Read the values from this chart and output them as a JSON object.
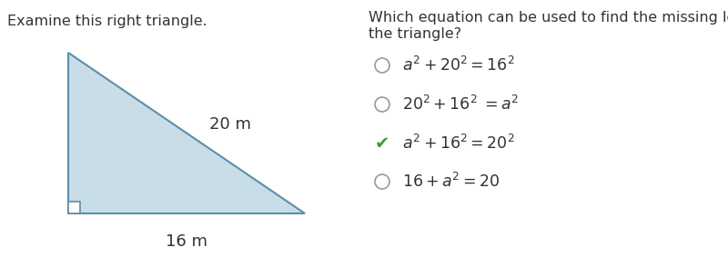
{
  "left_title": "Examine this right triangle.",
  "right_title_line1": "Which equation can be used to find the missing leg in",
  "right_title_line2": "the triangle?",
  "triangle_fill": "#c9dde8",
  "triangle_edge": "#5a8fa8",
  "label_20m": "20 m",
  "label_16m": "16 m",
  "options": [
    {
      "text": "$a^2 + 20^2 = 16^2$",
      "correct": false
    },
    {
      "text": "$20^2 + 16^2\\;= a^2$",
      "correct": false
    },
    {
      "text": "$a^2 + 16^2 =20^2$",
      "correct": true
    },
    {
      "text": "$16 + a^2 = 20$",
      "correct": false
    }
  ],
  "check_color": "#3a9c3a",
  "circle_edge_color": "#999999",
  "bg_color": "#ffffff",
  "font_color": "#333333",
  "title_fontsize": 11.5,
  "option_fontsize": 12.5
}
